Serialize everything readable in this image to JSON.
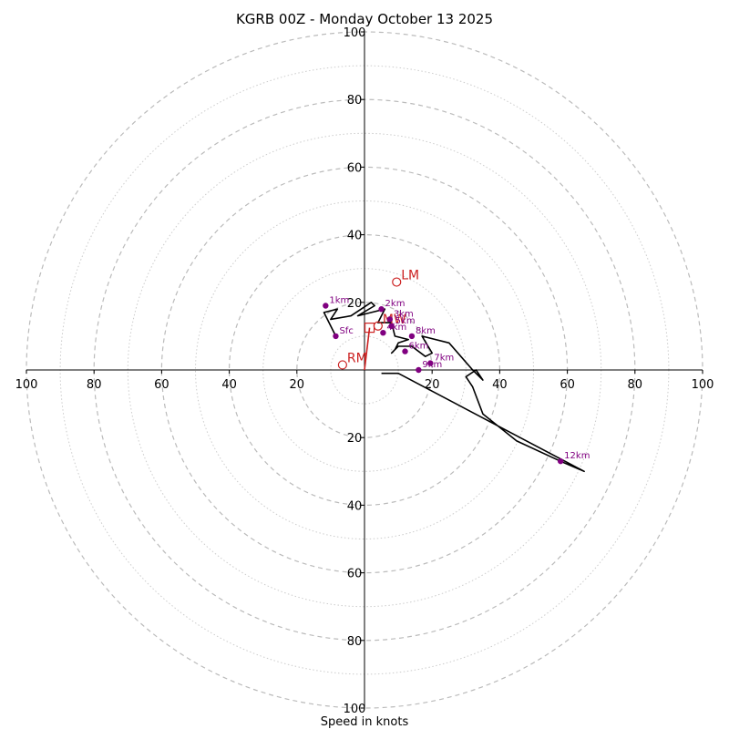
{
  "chart_data": {
    "type": "line",
    "title": "KGRB 00Z - Monday October 13 2025",
    "xlabel": "Speed in knots",
    "rlim": [
      0,
      100
    ],
    "grid": true,
    "ring_values": [
      10,
      20,
      30,
      40,
      50,
      60,
      70,
      80,
      90,
      100
    ],
    "tick_labels": {
      "horizontal": [
        "100",
        "80",
        "60",
        "40",
        "20",
        "20",
        "40",
        "60",
        "80",
        "100"
      ],
      "vertical": [
        "100",
        "80",
        "60",
        "40",
        "20",
        "20",
        "40",
        "60",
        "80",
        "100"
      ]
    },
    "colors": {
      "hodograph": "#000000",
      "heights": "#800080",
      "motion": "#cc2222",
      "grid": "#bbbbbb"
    },
    "hodograph": {
      "u": [
        -8.5,
        -12,
        -8,
        -10,
        -4,
        2,
        3,
        -2,
        2,
        6,
        4,
        8,
        9,
        13,
        10,
        9,
        8,
        10,
        14,
        18,
        20,
        17,
        25,
        32,
        35,
        33,
        30,
        32,
        35,
        45,
        58,
        65,
        10,
        5
      ],
      "v": [
        10,
        17,
        18,
        15,
        16,
        20,
        19,
        16,
        17,
        18,
        14,
        14,
        10,
        9,
        8,
        6,
        5,
        7,
        7,
        4,
        5,
        10,
        8,
        0,
        -3,
        0,
        -2,
        -5,
        -13,
        -21,
        -27,
        -30,
        -1,
        -1
      ]
    },
    "height_markers": [
      {
        "label": "Sfc",
        "u": -8.5,
        "v": 10
      },
      {
        "label": "1km",
        "u": -11.5,
        "v": 19
      },
      {
        "label": "2km",
        "u": 5,
        "v": 18
      },
      {
        "label": "3km",
        "u": 7.5,
        "v": 15
      },
      {
        "label": "4km",
        "u": 5.5,
        "v": 11
      },
      {
        "label": "5km",
        "u": 8,
        "v": 13
      },
      {
        "label": "6km",
        "u": 12,
        "v": 5.5
      },
      {
        "label": "7km",
        "u": 19.5,
        "v": 2
      },
      {
        "label": "8km",
        "u": 14,
        "v": 10
      },
      {
        "label": "9km",
        "u": 16,
        "v": 0
      },
      {
        "label": "12km",
        "u": 58,
        "v": -27
      }
    ],
    "storm_motions": [
      {
        "label": "LM",
        "u": 9.5,
        "v": 26
      },
      {
        "label": "RM",
        "u": -6.5,
        "v": 1.5
      },
      {
        "label": "MW",
        "u": 4,
        "v": 13
      }
    ],
    "mean_wind_vector": {
      "u": 1.5,
      "v": 12.5
    },
    "mean_wind_label": "MW"
  }
}
